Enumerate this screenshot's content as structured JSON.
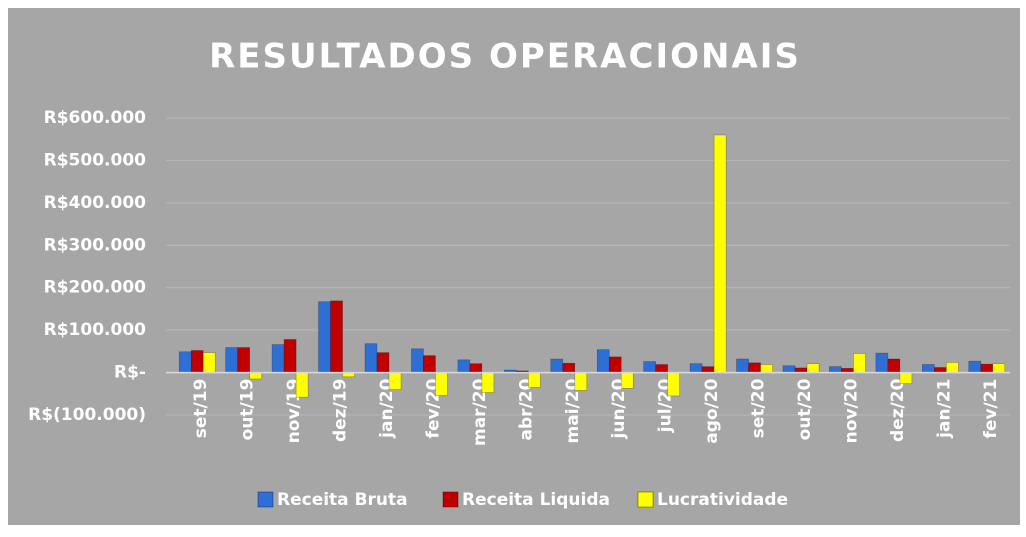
{
  "chart_data": {
    "type": "bar",
    "title": "RESULTADOS OPERACIONAIS",
    "categories": [
      "set/19",
      "out/19",
      "nov/19",
      "dez/19",
      "jan/20",
      "fev/20",
      "mar/20",
      "abr/20",
      "mai/20",
      "jun/20",
      "jul/20",
      "ago/20",
      "set/20",
      "out/20",
      "nov/20",
      "dez/20",
      "jan/21",
      "fev/21"
    ],
    "series": [
      {
        "name": "Receita Bruta",
        "color": "#2e6fd6",
        "values": [
          49000,
          59000,
          66000,
          167000,
          68000,
          56000,
          30000,
          6000,
          32000,
          54000,
          26000,
          21000,
          32000,
          16000,
          14000,
          46000,
          19000,
          27000
        ]
      },
      {
        "name": "Receita Liquida",
        "color": "#c00000",
        "values": [
          52000,
          59000,
          78000,
          169000,
          47000,
          40000,
          21000,
          4000,
          22000,
          37000,
          19000,
          14000,
          23000,
          11000,
          10000,
          32000,
          12000,
          20000
        ]
      },
      {
        "name": "Lucratividade",
        "color": "#ffff00",
        "values": [
          47000,
          -15000,
          -58000,
          -10000,
          -40000,
          -54000,
          -47000,
          -35000,
          -42000,
          -37000,
          -55000,
          560000,
          19000,
          21000,
          45000,
          -26000,
          24000,
          21000
        ]
      }
    ],
    "ylim": [
      -100000,
      600000
    ],
    "yticks": [
      {
        "value": -100000,
        "label": "R$(100.000)"
      },
      {
        "value": 0,
        "label": "R$-"
      },
      {
        "value": 100000,
        "label": "R$100.000"
      },
      {
        "value": 200000,
        "label": "R$200.000"
      },
      {
        "value": 300000,
        "label": "R$300.000"
      },
      {
        "value": 400000,
        "label": "R$400.000"
      },
      {
        "value": 500000,
        "label": "R$500.000"
      },
      {
        "value": 600000,
        "label": "R$600.000"
      }
    ],
    "grid": true,
    "legend": "bottom"
  }
}
